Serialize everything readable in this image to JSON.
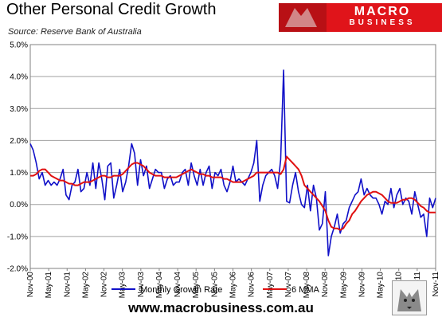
{
  "title": "Other Personal Credit Growth",
  "source": "Source: Reserve Bank of Australia",
  "logo": {
    "line1": "MACRO",
    "line2": "BUSINESS"
  },
  "footer": "www.macrobusiness.com.au",
  "colors": {
    "monthly": "#1010c8",
    "mma": "#e01010",
    "grid": "#a0a0a0",
    "logo_bg": "#e0141a"
  },
  "chart_data": {
    "type": "line",
    "ylim": [
      -2.0,
      5.0
    ],
    "yticks": [
      "-2.0%",
      "-1.0%",
      "0.0%",
      "1.0%",
      "2.0%",
      "3.0%",
      "4.0%",
      "5.0%"
    ],
    "xticks": [
      "Nov-00",
      "May-01",
      "Nov-01",
      "May-02",
      "Nov-02",
      "May-03",
      "Nov-03",
      "May-04",
      "Nov-04",
      "May-05",
      "Nov-05",
      "May-06",
      "Nov-06",
      "May-07",
      "Nov-07",
      "May-08",
      "Nov-08",
      "May-09",
      "Nov-09",
      "May-10",
      "Nov-10",
      "May-11",
      "Nov-11"
    ],
    "legend": "bottom",
    "series": [
      {
        "name": "Monthly Growth Rate",
        "values": [
          1.9,
          1.7,
          1.3,
          0.8,
          1.0,
          0.6,
          0.75,
          0.6,
          0.7,
          0.6,
          0.8,
          1.1,
          0.3,
          0.15,
          0.6,
          0.7,
          1.1,
          0.4,
          0.5,
          1.0,
          0.6,
          1.3,
          0.5,
          1.3,
          0.8,
          0.15,
          1.2,
          1.3,
          0.2,
          0.6,
          1.1,
          0.4,
          0.7,
          1.2,
          1.9,
          1.6,
          0.6,
          1.4,
          0.9,
          1.2,
          0.5,
          0.8,
          1.1,
          1.0,
          1.0,
          0.5,
          0.8,
          0.9,
          0.6,
          0.7,
          0.7,
          1.0,
          1.1,
          0.6,
          1.3,
          0.9,
          0.6,
          1.1,
          0.6,
          1.0,
          1.2,
          0.5,
          1.0,
          0.9,
          1.1,
          0.6,
          0.4,
          0.7,
          1.2,
          0.7,
          0.8,
          0.7,
          0.6,
          0.8,
          1.0,
          1.3,
          2.0,
          0.1,
          0.6,
          0.9,
          1.0,
          1.1,
          0.9,
          0.5,
          1.4,
          4.2,
          0.1,
          0.05,
          0.6,
          1.0,
          0.4,
          0.0,
          -0.1,
          0.6,
          -0.2,
          0.6,
          0.2,
          -0.8,
          -0.6,
          0.4,
          -1.6,
          -1.0,
          -0.7,
          -0.3,
          -0.9,
          -0.6,
          -0.5,
          -0.1,
          0.1,
          0.3,
          0.4,
          0.8,
          0.3,
          0.5,
          0.3,
          0.2,
          0.2,
          0.0,
          -0.3,
          0.1,
          0.0,
          0.5,
          -0.1,
          0.3,
          0.5,
          0.0,
          0.2,
          0.1,
          -0.3,
          0.4,
          0.0,
          -0.4,
          -0.3,
          -1.0,
          0.2,
          -0.1,
          0.2
        ]
      },
      {
        "name": "6 MMA",
        "values": [
          0.9,
          0.9,
          0.95,
          1.05,
          1.1,
          1.1,
          1.0,
          0.9,
          0.85,
          0.8,
          0.75,
          0.75,
          0.7,
          0.65,
          0.65,
          0.6,
          0.6,
          0.65,
          0.7,
          0.7,
          0.7,
          0.75,
          0.8,
          0.85,
          0.9,
          0.9,
          0.85,
          0.85,
          0.9,
          0.9,
          0.9,
          0.95,
          1.05,
          1.15,
          1.25,
          1.3,
          1.3,
          1.25,
          1.2,
          1.1,
          1.0,
          0.95,
          0.9,
          0.9,
          0.9,
          0.85,
          0.85,
          0.85,
          0.85,
          0.85,
          0.9,
          0.95,
          1.0,
          1.05,
          1.1,
          1.05,
          1.0,
          0.95,
          0.95,
          0.9,
          0.9,
          0.85,
          0.85,
          0.85,
          0.85,
          0.8,
          0.8,
          0.75,
          0.7,
          0.7,
          0.7,
          0.7,
          0.75,
          0.8,
          0.85,
          0.9,
          1.0,
          1.0,
          1.0,
          1.0,
          1.0,
          1.0,
          1.0,
          1.0,
          0.95,
          1.1,
          1.5,
          1.4,
          1.3,
          1.2,
          1.1,
          0.9,
          0.6,
          0.5,
          0.4,
          0.3,
          0.2,
          0.1,
          -0.05,
          -0.2,
          -0.5,
          -0.7,
          -0.75,
          -0.75,
          -0.8,
          -0.75,
          -0.6,
          -0.5,
          -0.3,
          -0.2,
          -0.05,
          0.1,
          0.2,
          0.3,
          0.35,
          0.4,
          0.4,
          0.35,
          0.3,
          0.2,
          0.1,
          0.05,
          0.05,
          0.05,
          0.1,
          0.15,
          0.15,
          0.2,
          0.2,
          0.15,
          0.05,
          -0.05,
          -0.1,
          -0.2,
          -0.25,
          -0.25,
          -0.25
        ]
      }
    ]
  }
}
